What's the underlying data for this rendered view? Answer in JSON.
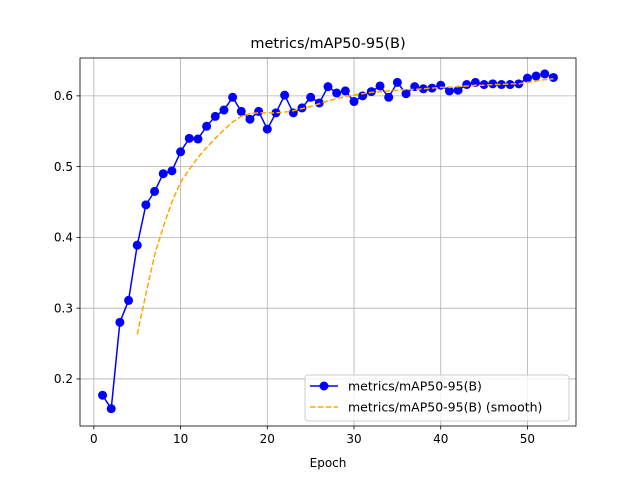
{
  "chart_data": {
    "type": "line",
    "title": "metrics/mAP50-95(B)",
    "xlabel": "Epoch",
    "ylabel": "",
    "xlim": [
      -1.6,
      55.6
    ],
    "ylim": [
      0.1335,
      0.6535
    ],
    "xticks": [
      0,
      10,
      20,
      30,
      40,
      50
    ],
    "yticks": [
      0.2,
      0.3,
      0.4,
      0.5,
      0.6
    ],
    "ytick_labels": [
      "0.2",
      "0.3",
      "0.4",
      "0.5",
      "0.6"
    ],
    "grid": true,
    "legend_position": "lower-right",
    "series": [
      {
        "name": "metrics/mAP50-95(B)",
        "color": "#0000ff",
        "style": "solid-marker",
        "x": [
          1,
          2,
          3,
          4,
          5,
          6,
          7,
          8,
          9,
          10,
          11,
          12,
          13,
          14,
          15,
          16,
          17,
          18,
          19,
          20,
          21,
          22,
          23,
          24,
          25,
          26,
          27,
          28,
          29,
          30,
          31,
          32,
          33,
          34,
          35,
          36,
          37,
          38,
          39,
          40,
          41,
          42,
          43,
          44,
          45,
          46,
          47,
          48,
          49,
          50,
          51,
          52,
          53
        ],
        "values": [
          0.177,
          0.158,
          0.28,
          0.311,
          0.389,
          0.446,
          0.465,
          0.49,
          0.494,
          0.521,
          0.54,
          0.539,
          0.557,
          0.571,
          0.58,
          0.598,
          0.578,
          0.567,
          0.578,
          0.553,
          0.576,
          0.601,
          0.576,
          0.583,
          0.598,
          0.59,
          0.613,
          0.604,
          0.607,
          0.592,
          0.6,
          0.606,
          0.614,
          0.598,
          0.619,
          0.603,
          0.613,
          0.61,
          0.611,
          0.615,
          0.607,
          0.608,
          0.616,
          0.619,
          0.616,
          0.617,
          0.616,
          0.616,
          0.617,
          0.625,
          0.628,
          0.631,
          0.626
        ]
      },
      {
        "name": "metrics/mAP50-95(B) (smooth)",
        "color": "#ffa500",
        "style": "dashed",
        "x": [
          5,
          6,
          7,
          8,
          9,
          10,
          11,
          12,
          13,
          14,
          15,
          16,
          17,
          18,
          19,
          20,
          21,
          22,
          23,
          24,
          25,
          26,
          27,
          28,
          29,
          30,
          31,
          32,
          33,
          34,
          35,
          36,
          37,
          38,
          39,
          40,
          41,
          42,
          43,
          44,
          45,
          46,
          47,
          48,
          49,
          50,
          51,
          52,
          53
        ],
        "values": [
          0.263,
          0.32,
          0.375,
          0.415,
          0.45,
          0.478,
          0.496,
          0.513,
          0.527,
          0.54,
          0.552,
          0.563,
          0.571,
          0.575,
          0.576,
          0.576,
          0.576,
          0.577,
          0.579,
          0.582,
          0.585,
          0.589,
          0.593,
          0.596,
          0.599,
          0.601,
          0.603,
          0.605,
          0.606,
          0.607,
          0.608,
          0.609,
          0.609,
          0.61,
          0.611,
          0.612,
          0.612,
          0.613,
          0.614,
          0.615,
          0.615,
          0.616,
          0.616,
          0.617,
          0.617,
          0.619,
          0.621,
          0.623,
          0.624
        ]
      }
    ]
  }
}
